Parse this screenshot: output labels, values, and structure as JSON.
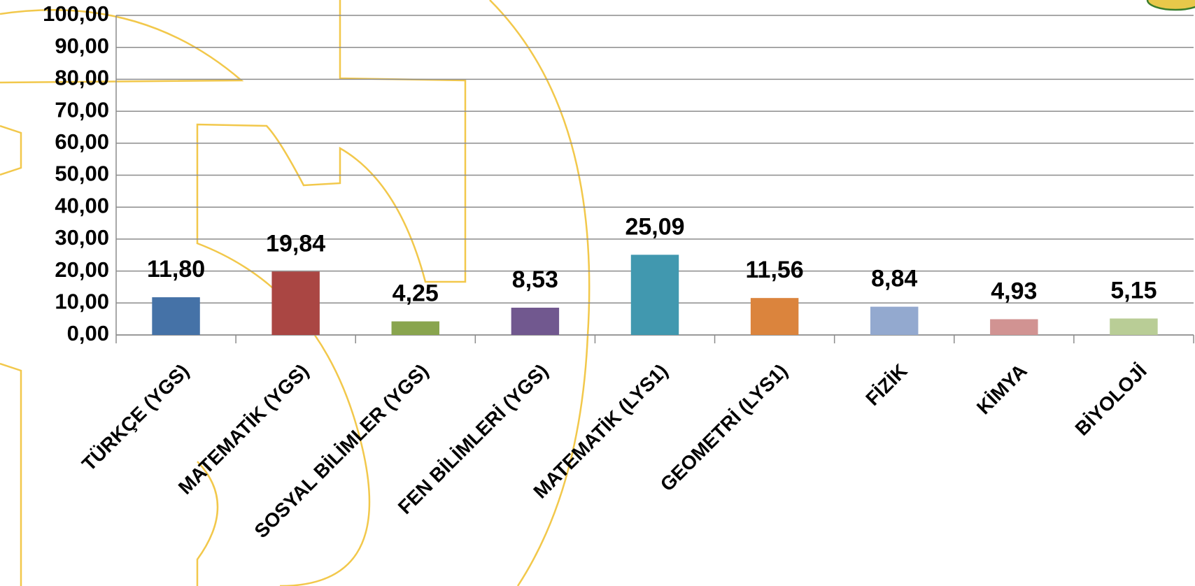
{
  "chart_data": {
    "type": "bar",
    "categories": [
      "TÜRKÇE (YGS)",
      "MATEMATİK (YGS)",
      "SOSYAL BİLİMLER (YGS)",
      "FEN BİLİMLERİ (YGS)",
      "MATEMATİK (LYS1)",
      "GEOMETRİ (LYS1)",
      "FİZİK",
      "KİMYA",
      "BİYOLOJİ"
    ],
    "values": [
      11.8,
      19.84,
      4.25,
      8.53,
      25.09,
      11.56,
      8.84,
      4.93,
      5.15
    ],
    "value_labels": [
      "11,80",
      "19,84",
      "4,25",
      "8,53",
      "25,09",
      "11,56",
      "8,84",
      "4,93",
      "5,15"
    ],
    "colors": [
      "#4572a7",
      "#aa4643",
      "#89a54e",
      "#71588f",
      "#4198af",
      "#db843d",
      "#93a9cf",
      "#d19392",
      "#b9cd96"
    ],
    "ylim": [
      0,
      100
    ],
    "yticks": [
      {
        "value": 0,
        "label": "0,00"
      },
      {
        "value": 10,
        "label": "10,00"
      },
      {
        "value": 20,
        "label": "20,00"
      },
      {
        "value": 30,
        "label": "30,00"
      },
      {
        "value": 40,
        "label": "40,00"
      },
      {
        "value": 50,
        "label": "50,00"
      },
      {
        "value": 60,
        "label": "60,00"
      },
      {
        "value": 70,
        "label": "70,00"
      },
      {
        "value": 80,
        "label": "80,00"
      },
      {
        "value": 90,
        "label": "90,00"
      },
      {
        "value": 100,
        "label": "100,00"
      }
    ],
    "grid": true
  }
}
